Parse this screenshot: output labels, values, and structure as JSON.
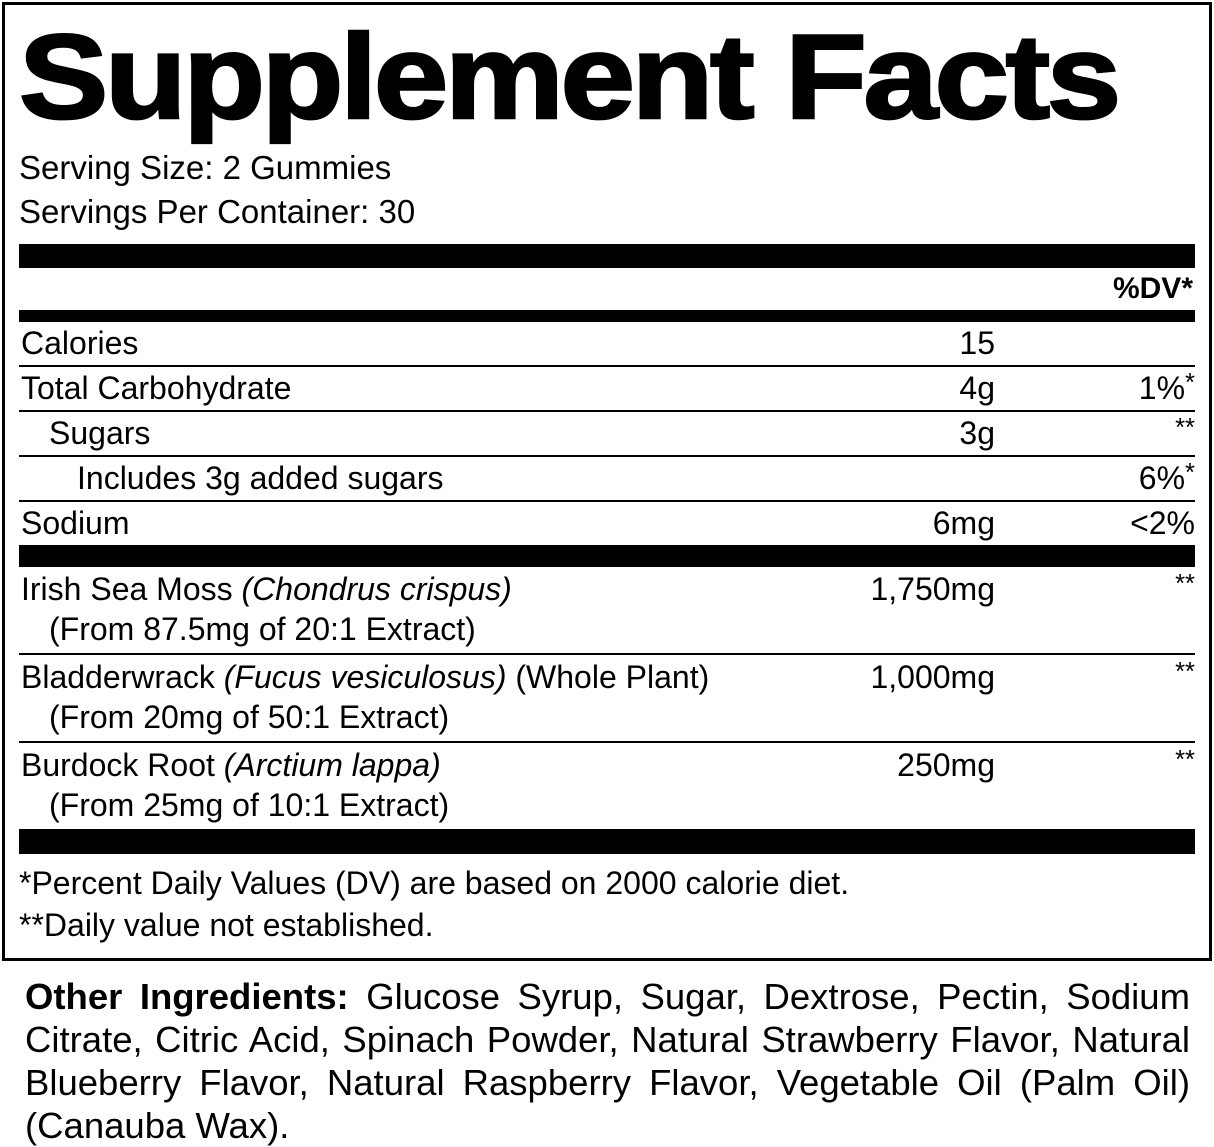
{
  "title": "Supplement Facts",
  "serving": {
    "serving_size": "Serving Size: 2 Gummies",
    "servings_per_container": "Servings Per Container: 30"
  },
  "table": {
    "dv_header": "%DV*",
    "nutrients": [
      {
        "name": "Calories",
        "indent": 0,
        "amount": "15",
        "dv": ""
      },
      {
        "name": "Total Carbohydrate",
        "indent": 0,
        "amount": "4g",
        "dv": "1%*"
      },
      {
        "name": "Sugars",
        "indent": 1,
        "amount": "3g",
        "dv": "**"
      },
      {
        "name": "Includes 3g added sugars",
        "indent": 2,
        "amount": "",
        "dv": "6%*"
      },
      {
        "name": "Sodium",
        "indent": 0,
        "amount": "6mg",
        "dv": "<2%"
      }
    ],
    "botanicals": [
      {
        "name": "Irish Sea Moss",
        "latin": "(Chondrus crispus)",
        "suffix": "",
        "detail": "(From 87.5mg of 20:1 Extract)",
        "amount": "1,750mg",
        "dv": "**"
      },
      {
        "name": "Bladderwrack",
        "latin": "(Fucus vesiculosus)",
        "suffix": "(Whole Plant)",
        "detail": "(From 20mg of 50:1 Extract)",
        "amount": "1,000mg",
        "dv": "**"
      },
      {
        "name": "Burdock Root",
        "latin": "(Arctium lappa)",
        "suffix": "",
        "detail": "(From 25mg of 10:1 Extract)",
        "amount": "250mg",
        "dv": "**"
      }
    ],
    "footnotes": [
      "*Percent Daily Values (DV) are based on 2000 calorie diet.",
      "**Daily value not established."
    ]
  },
  "other_ingredients": {
    "label": "Other Ingredients:",
    "text": "Glucose Syrup, Sugar, Dextrose, Pectin, Sodium Citrate, Citric Acid, Spinach Powder, Natural Strawberry Flavor, Natural Blueberry Flavor, Natural Raspberry Flavor, Vegetable Oil (Palm Oil) (Canauba Wax)."
  },
  "colors": {
    "text": "#000000",
    "background": "#ffffff"
  }
}
